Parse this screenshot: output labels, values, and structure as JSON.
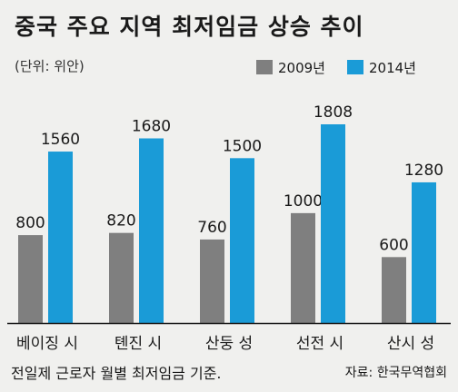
{
  "chart_data": {
    "type": "bar",
    "title": "중국 주요 지역 최저임금 상승 추이",
    "unit": "(단위: 위안)",
    "categories": [
      "베이징 시",
      "톈진 시",
      "산둥 성",
      "선전 시",
      "산시 성"
    ],
    "series": [
      {
        "name": "2009년",
        "color": "#7f7f7f",
        "values": [
          800,
          820,
          760,
          1000,
          600
        ]
      },
      {
        "name": "2014년",
        "color": "#1a9bd7",
        "values": [
          1560,
          1680,
          1500,
          1808,
          1280
        ]
      }
    ],
    "ylim": [
      0,
      1808
    ],
    "grid": false,
    "legend": "top-right"
  },
  "footer": {
    "note": "전일제 근로자 월별 최저임금 기준.",
    "source": "자료: 한국무역협회"
  }
}
